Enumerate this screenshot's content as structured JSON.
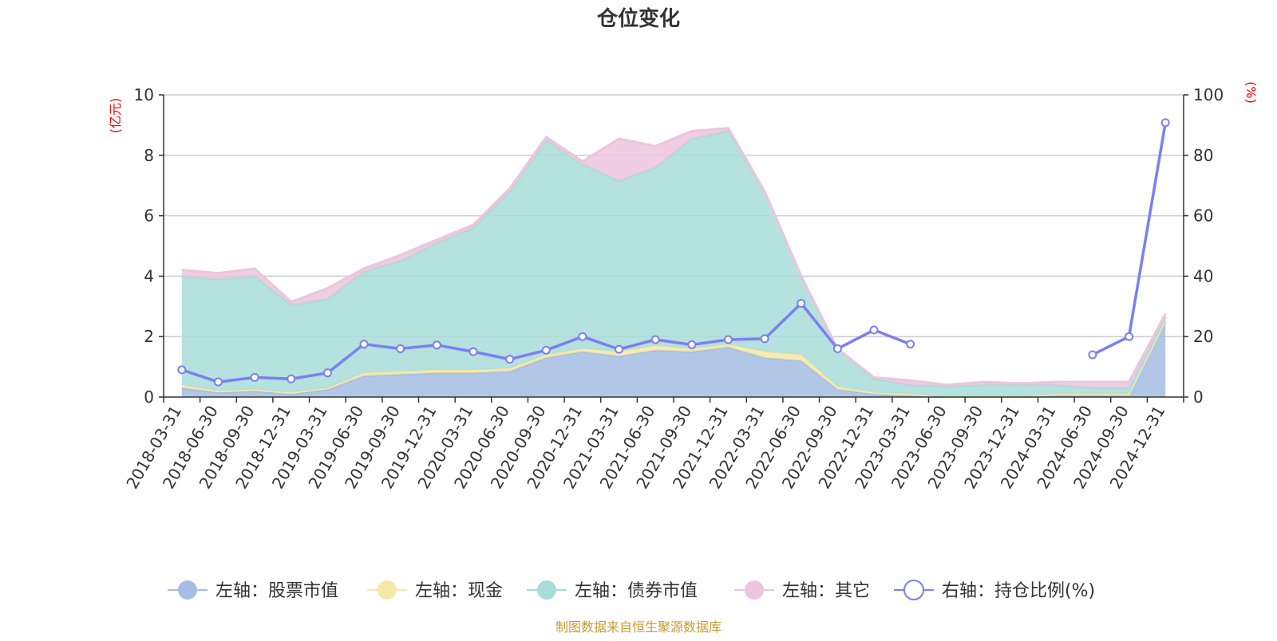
{
  "chart_data": {
    "type": "area",
    "title": "仓位变化",
    "left_axis": {
      "unit": "(亿元)",
      "ylim": [
        0,
        10
      ],
      "ticks": [
        0,
        2,
        4,
        6,
        8,
        10
      ]
    },
    "right_axis": {
      "unit": "(%)",
      "ylim": [
        0,
        100
      ],
      "ticks": [
        0,
        20,
        40,
        60,
        80,
        100
      ]
    },
    "categories": [
      "2018-03-31",
      "2018-06-30",
      "2018-09-30",
      "2018-12-31",
      "2019-03-31",
      "2019-06-30",
      "2019-09-30",
      "2019-12-31",
      "2020-03-31",
      "2020-06-30",
      "2020-09-30",
      "2020-12-31",
      "2021-03-31",
      "2021-06-30",
      "2021-09-30",
      "2021-12-31",
      "2022-03-31",
      "2022-06-30",
      "2022-09-30",
      "2022-12-31",
      "2023-03-31",
      "2023-06-30",
      "2023-09-30",
      "2023-12-31",
      "2024-03-31",
      "2024-06-30",
      "2024-09-30",
      "2024-12-31"
    ],
    "series": [
      {
        "name": "左轴：股票市值",
        "axis": "left",
        "stack": true,
        "color": "#a5bde3",
        "values": [
          0.3,
          0.15,
          0.2,
          0.1,
          0.25,
          0.7,
          0.75,
          0.8,
          0.8,
          0.85,
          1.3,
          1.5,
          1.35,
          1.55,
          1.5,
          1.65,
          1.3,
          1.2,
          0.25,
          0.1,
          0.05,
          0.0,
          0.0,
          0.0,
          0.05,
          0.05,
          0.05,
          2.5
        ]
      },
      {
        "name": "左轴：现金",
        "axis": "left",
        "stack": true,
        "color": "#f6e8a6",
        "values": [
          0.1,
          0.05,
          0.05,
          0.05,
          0.05,
          0.1,
          0.1,
          0.1,
          0.1,
          0.1,
          0.1,
          0.1,
          0.15,
          0.15,
          0.1,
          0.1,
          0.2,
          0.2,
          0.1,
          0.05,
          0.05,
          0.0,
          0.0,
          0.0,
          0.05,
          0.05,
          0.05,
          0.05
        ]
      },
      {
        "name": "左轴：债券市值",
        "axis": "left",
        "stack": true,
        "color": "#a8dcd9",
        "values": [
          3.6,
          3.7,
          3.75,
          2.9,
          2.95,
          3.35,
          3.65,
          4.2,
          4.7,
          5.85,
          7.1,
          6.1,
          5.65,
          5.9,
          6.95,
          7.05,
          5.3,
          2.6,
          1.25,
          0.45,
          0.3,
          0.35,
          0.4,
          0.4,
          0.3,
          0.2,
          0.2,
          0.1
        ]
      },
      {
        "name": "左轴：其它",
        "axis": "left",
        "stack": true,
        "color": "#ecc4de",
        "values": [
          0.2,
          0.2,
          0.25,
          0.1,
          0.35,
          0.1,
          0.2,
          0.1,
          0.1,
          0.1,
          0.1,
          0.1,
          1.4,
          0.7,
          0.25,
          0.1,
          0.0,
          0.0,
          0.0,
          0.05,
          0.15,
          0.05,
          0.1,
          0.05,
          0.1,
          0.2,
          0.2,
          0.1
        ]
      },
      {
        "name": "右轴：持仓比例(%)",
        "axis": "right",
        "stack": false,
        "color": "#7b7ff2",
        "values": [
          9,
          5,
          6.5,
          6,
          8,
          17.5,
          16,
          17.2,
          15,
          12.5,
          15.5,
          20,
          15.8,
          19,
          17.3,
          19,
          19.3,
          31,
          16,
          22.2,
          17.5,
          null,
          null,
          null,
          null,
          14,
          20,
          90.8
        ]
      }
    ],
    "legend_position": "bottom",
    "grid": true
  },
  "footer": {
    "source": "制图数据来自恒生聚源数据库"
  }
}
